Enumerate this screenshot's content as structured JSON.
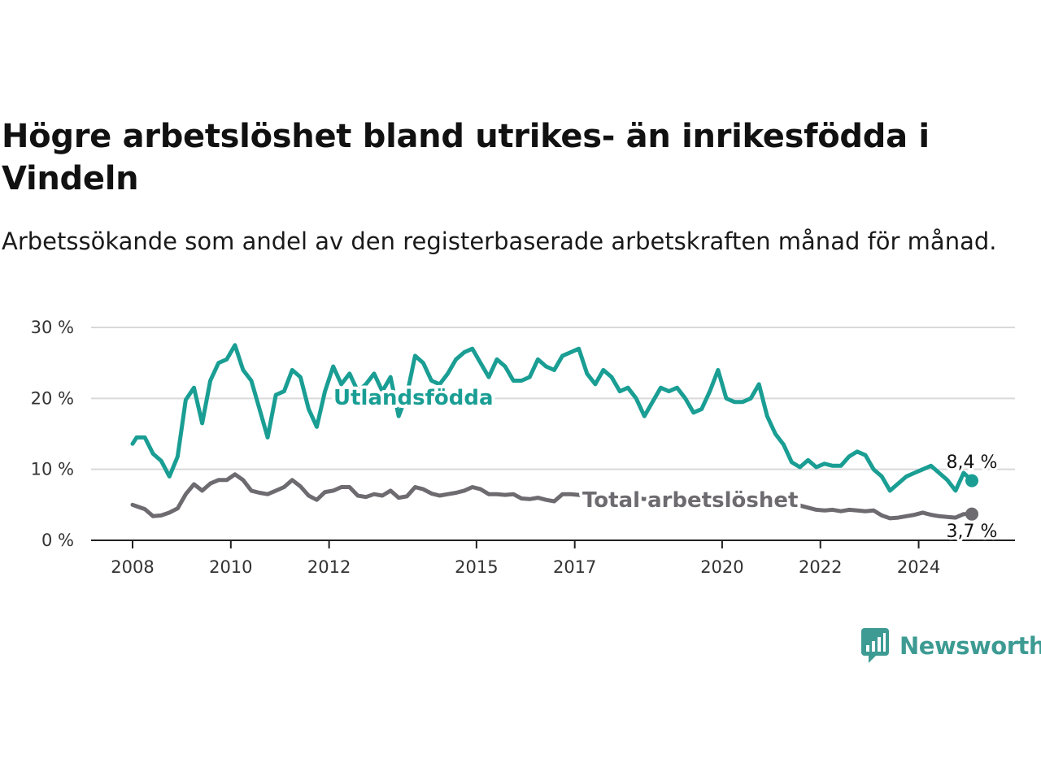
{
  "title": "Högre arbetslöshet bland utrikes- än inrikesfödda i Vindeln",
  "subtitle": "Arbetssökande som andel av den registerbaserade arbetskraften månad för månad.",
  "brand": {
    "name": "Newsworthy"
  },
  "chart_data": {
    "type": "line",
    "title": "Högre arbetslöshet bland utrikes- än inrikesfödda i Vindeln",
    "subtitle": "Arbetssökande som andel av den registerbaserade arbetskraften månad för månad.",
    "xlabel": "",
    "ylabel": "",
    "ylim": [
      0,
      30
    ],
    "xlim": [
      "2008-01",
      "2025-06"
    ],
    "y_ticks": [
      {
        "value": 0,
        "label": "0 %"
      },
      {
        "value": 10,
        "label": "10 %"
      },
      {
        "value": 20,
        "label": "20 %"
      },
      {
        "value": 30,
        "label": "30 %"
      }
    ],
    "x_ticks": [
      {
        "value": "2008-01",
        "label": "2008"
      },
      {
        "value": "2010-01",
        "label": "2010"
      },
      {
        "value": "2012-01",
        "label": "2012"
      },
      {
        "value": "2015-01",
        "label": "2015"
      },
      {
        "value": "2017-01",
        "label": "2017"
      },
      {
        "value": "2020-01",
        "label": "2020"
      },
      {
        "value": "2022-01",
        "label": "2022"
      },
      {
        "value": "2024-01",
        "label": "2024"
      }
    ],
    "grid": true,
    "series": [
      {
        "name": "Utlandsfödda",
        "color": "#1a9e94",
        "end_label": "8,4 %",
        "x": [
          "2008-01",
          "2008-02",
          "2008-04",
          "2008-06",
          "2008-08",
          "2008-10",
          "2008-12",
          "2009-02",
          "2009-04",
          "2009-06",
          "2009-08",
          "2009-10",
          "2009-12",
          "2010-02",
          "2010-04",
          "2010-06",
          "2010-08",
          "2010-10",
          "2010-12",
          "2011-02",
          "2011-04",
          "2011-06",
          "2011-08",
          "2011-10",
          "2011-12",
          "2012-02",
          "2012-04",
          "2012-06",
          "2012-08",
          "2012-10",
          "2012-12",
          "2013-02",
          "2013-04",
          "2013-06",
          "2013-08",
          "2013-10",
          "2013-12",
          "2014-02",
          "2014-04",
          "2014-06",
          "2014-08",
          "2014-10",
          "2014-12",
          "2015-02",
          "2015-04",
          "2015-06",
          "2015-08",
          "2015-10",
          "2015-12",
          "2016-02",
          "2016-04",
          "2016-06",
          "2016-08",
          "2016-10",
          "2016-12",
          "2017-02",
          "2017-04",
          "2017-06",
          "2017-08",
          "2017-10",
          "2017-12",
          "2018-02",
          "2018-04",
          "2018-06",
          "2018-08",
          "2018-10",
          "2018-12",
          "2019-02",
          "2019-04",
          "2019-06",
          "2019-08",
          "2019-10",
          "2019-12",
          "2020-02",
          "2020-04",
          "2020-06",
          "2020-08",
          "2020-10",
          "2020-12",
          "2021-02",
          "2021-04",
          "2021-06",
          "2021-08",
          "2021-10",
          "2021-12",
          "2022-02",
          "2022-04",
          "2022-06",
          "2022-08",
          "2022-10",
          "2022-12",
          "2023-02",
          "2023-04",
          "2023-06",
          "2023-08",
          "2023-10",
          "2023-12",
          "2024-02",
          "2024-04",
          "2024-06",
          "2024-08",
          "2024-10",
          "2024-12",
          "2025-02"
        ],
        "values": [
          13.6,
          14.5,
          14.5,
          12.2,
          11.2,
          9.0,
          11.8,
          19.8,
          21.5,
          16.5,
          22.5,
          25.0,
          25.5,
          27.5,
          24.0,
          22.5,
          18.5,
          14.5,
          20.5,
          21.0,
          24.0,
          23.0,
          18.5,
          16.0,
          21.0,
          24.5,
          22.0,
          23.5,
          21.0,
          22.0,
          23.5,
          21.0,
          23.0,
          17.5,
          20.5,
          26.0,
          25.0,
          22.5,
          22.0,
          23.5,
          25.5,
          26.5,
          27.0,
          25.0,
          23.0,
          25.5,
          24.5,
          22.5,
          22.5,
          23.0,
          25.5,
          24.5,
          24.0,
          26.0,
          26.5,
          27.0,
          23.5,
          22.0,
          24.0,
          23.0,
          21.0,
          21.5,
          20.0,
          17.5,
          19.5,
          21.5,
          21.0,
          21.5,
          20.0,
          18.0,
          18.5,
          21.0,
          24.0,
          20.0,
          19.5,
          19.5,
          20.0,
          22.0,
          17.5,
          15.0,
          13.5,
          11.0,
          10.3,
          11.3,
          10.3,
          10.8,
          10.5,
          10.5,
          11.8,
          12.5,
          12.0,
          10.0,
          9.0,
          7.0,
          8.0,
          9.0,
          9.5,
          10.0,
          10.5,
          9.5,
          8.5,
          7.0,
          9.5,
          8.4
        ]
      },
      {
        "name": "Total arbetslöshet",
        "color": "#6e6b70",
        "end_label": "3,7 %",
        "x": [
          "2008-01",
          "2008-02",
          "2008-04",
          "2008-06",
          "2008-08",
          "2008-10",
          "2008-12",
          "2009-02",
          "2009-04",
          "2009-06",
          "2009-08",
          "2009-10",
          "2009-12",
          "2010-02",
          "2010-04",
          "2010-06",
          "2010-08",
          "2010-10",
          "2010-12",
          "2011-02",
          "2011-04",
          "2011-06",
          "2011-08",
          "2011-10",
          "2011-12",
          "2012-02",
          "2012-04",
          "2012-06",
          "2012-08",
          "2012-10",
          "2012-12",
          "2013-02",
          "2013-04",
          "2013-06",
          "2013-08",
          "2013-10",
          "2013-12",
          "2014-02",
          "2014-04",
          "2014-06",
          "2014-08",
          "2014-10",
          "2014-12",
          "2015-02",
          "2015-04",
          "2015-06",
          "2015-08",
          "2015-10",
          "2015-12",
          "2016-02",
          "2016-04",
          "2016-06",
          "2016-08",
          "2016-10",
          "2016-12",
          "2017-02",
          "2017-04",
          "2017-06",
          "2017-08",
          "2017-10",
          "2017-12",
          "2018-02",
          "2018-04",
          "2018-06",
          "2018-08",
          "2018-10",
          "2018-12",
          "2019-02",
          "2019-04",
          "2019-06",
          "2019-08",
          "2019-10",
          "2019-12",
          "2020-02",
          "2020-04",
          "2020-06",
          "2020-08",
          "2020-10",
          "2020-12",
          "2021-02",
          "2021-04",
          "2021-06",
          "2021-08",
          "2021-10",
          "2021-12",
          "2022-02",
          "2022-04",
          "2022-06",
          "2022-08",
          "2022-10",
          "2022-12",
          "2023-02",
          "2023-04",
          "2023-06",
          "2023-08",
          "2023-10",
          "2023-12",
          "2024-02",
          "2024-04",
          "2024-06",
          "2024-08",
          "2024-10",
          "2024-12",
          "2025-02"
        ],
        "values": [
          5.0,
          4.8,
          4.4,
          3.4,
          3.5,
          3.9,
          4.5,
          6.5,
          7.9,
          7.0,
          8.0,
          8.5,
          8.5,
          9.3,
          8.5,
          7.0,
          6.7,
          6.5,
          7.0,
          7.5,
          8.5,
          7.6,
          6.3,
          5.7,
          6.8,
          7.0,
          7.5,
          7.5,
          6.3,
          6.1,
          6.5,
          6.3,
          7.0,
          6.0,
          6.2,
          7.5,
          7.2,
          6.6,
          6.3,
          6.5,
          6.7,
          7.0,
          7.5,
          7.2,
          6.5,
          6.5,
          6.4,
          6.5,
          5.9,
          5.8,
          6.0,
          5.7,
          5.5,
          6.5,
          6.5,
          6.4,
          6.2,
          6.3,
          6.3,
          6.2,
          6.3,
          6.1,
          6.0,
          5.8,
          6.0,
          5.7,
          5.8,
          5.7,
          5.6,
          5.6,
          5.6,
          5.7,
          5.8,
          5.7,
          5.5,
          5.6,
          5.4,
          5.3,
          5.4,
          5.5,
          5.4,
          5.2,
          4.9,
          4.6,
          4.3,
          4.2,
          4.3,
          4.1,
          4.3,
          4.2,
          4.1,
          4.2,
          3.5,
          3.1,
          3.2,
          3.4,
          3.6,
          3.9,
          3.6,
          3.4,
          3.3,
          3.2,
          3.7,
          3.7
        ]
      }
    ],
    "legend": "inline"
  }
}
